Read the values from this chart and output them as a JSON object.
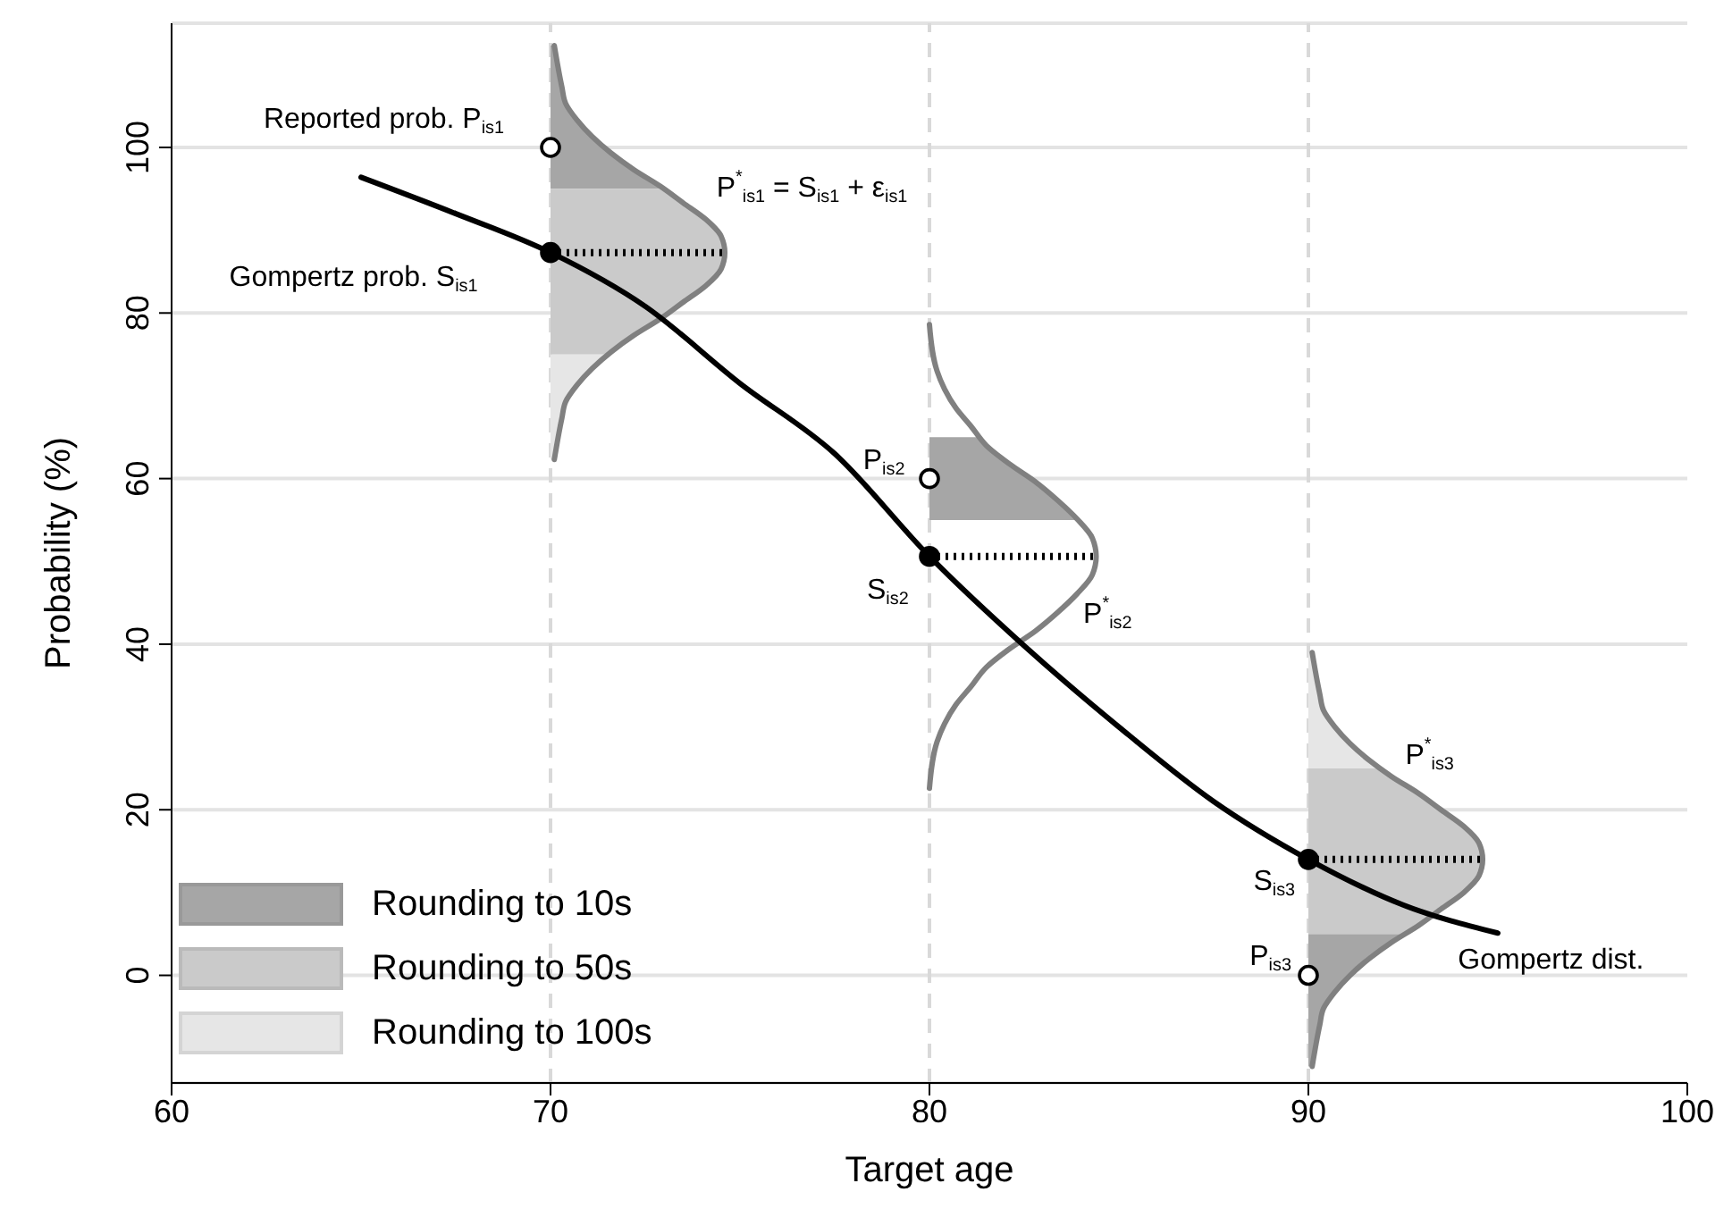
{
  "chart_data": {
    "type": "line",
    "xlabel": "Target age",
    "ylabel": "Probability (%)",
    "xlim": [
      60,
      100
    ],
    "xticks": [
      60,
      70,
      80,
      90,
      100
    ],
    "ylim": [
      -13,
      115
    ],
    "yticks": [
      0,
      20,
      40,
      60,
      80,
      100
    ],
    "grid": "y",
    "legend": "bottom left",
    "line_style": "solid",
    "ref_lines": [
      {
        "axis": "x",
        "value": 70,
        "color": "#d9d9d9",
        "line_style": "dashed"
      },
      {
        "axis": "x",
        "value": 80,
        "color": "#d9d9d9",
        "line_style": "dashed"
      },
      {
        "axis": "x",
        "value": 90,
        "color": "#d9d9d9",
        "line_style": "dashed"
      }
    ],
    "series": [
      {
        "name": "Rounding to 10s",
        "type": "area",
        "color": "#a6a6a6",
        "x": [
          70,
          73.0,
          72.2,
          71.6,
          71.1,
          70.7,
          70.4,
          70.3,
          70.1,
          70
        ],
        "values": [
          95,
          95,
          97.3,
          99.3,
          101.3,
          103.3,
          105.3,
          107.3,
          112.3,
          112.3
        ]
      },
      {
        "name": "Rounding to 50s",
        "type": "area",
        "color": "#cacaca",
        "x": [
          70,
          71.5,
          71.6,
          72.2,
          72.9,
          73.5,
          74.1,
          74.5,
          74.6,
          74.5,
          74.1,
          73.5,
          73.0,
          70
        ],
        "values": [
          75,
          75,
          75.3,
          77.3,
          79.3,
          81.3,
          83.3,
          85.3,
          87.3,
          89.3,
          91.3,
          93.3,
          95,
          95
        ]
      },
      {
        "name": "Rounding to 100s",
        "type": "area",
        "color": "#e6e6e6",
        "x": [
          70,
          70.1,
          70.3,
          70.4,
          70.7,
          71.1,
          71.5,
          70
        ],
        "values": [
          62.3,
          62.3,
          67.3,
          69.3,
          71.3,
          73.3,
          75,
          75
        ]
      },
      {
        "type": "area",
        "color": "#a6a6a6",
        "x": [
          80,
          83.9,
          83.4,
          82.8,
          82.1,
          81.5,
          81.3,
          80
        ],
        "values": [
          55,
          55,
          57.3,
          59.6,
          61.8,
          64.0,
          65,
          65
        ]
      },
      {
        "type": "area",
        "color": "#a6a6a6",
        "x": [
          90,
          90.1,
          90.3,
          90.4,
          90.7,
          91.1,
          91.6,
          92.2,
          92.6,
          90
        ],
        "values": [
          -11,
          -11,
          -6,
          -4,
          -2,
          0,
          2,
          4,
          5,
          5
        ]
      },
      {
        "type": "area",
        "color": "#cacaca",
        "x": [
          90,
          92.6,
          92.9,
          93.5,
          94.1,
          94.5,
          94.6,
          94.5,
          94.1,
          93.5,
          92.9,
          92.2,
          91.9,
          90
        ],
        "values": [
          5,
          5,
          6,
          8,
          10,
          12,
          14,
          16,
          18,
          20,
          22,
          24,
          25,
          25
        ]
      },
      {
        "type": "area",
        "color": "#e6e6e6",
        "x": [
          90,
          91.9,
          91.6,
          91.1,
          90.7,
          90.4,
          90.3,
          90.1,
          90
        ],
        "values": [
          25,
          25,
          26,
          28,
          30,
          32,
          34,
          39,
          39
        ]
      },
      {
        "color": "#808080",
        "x": [
          70.1,
          70.3,
          70.4,
          70.7,
          71.1,
          71.6,
          72.2,
          72.9,
          73.5,
          74.1,
          74.5,
          74.6,
          74.5,
          74.1,
          73.5,
          72.9,
          72.2,
          71.6,
          71.1,
          70.7,
          70.4,
          70.3,
          70.1
        ],
        "values": [
          62.3,
          67.3,
          69.3,
          71.3,
          73.3,
          75.3,
          77.3,
          79.3,
          81.3,
          83.3,
          85.3,
          87.3,
          89.3,
          91.3,
          93.3,
          95.3,
          97.3,
          99.3,
          101.3,
          103.3,
          105.3,
          107.3,
          112.3
        ]
      },
      {
        "color": "#808080",
        "x": [
          80.0,
          80.2,
          80.4,
          80.7,
          81.1,
          81.5,
          82.1,
          82.8,
          83.4,
          83.9,
          84.3,
          84.4,
          84.3,
          83.9,
          83.4,
          82.8,
          82.1,
          81.5,
          81.1,
          80.7,
          80.4,
          80.2,
          80.0
        ],
        "values": [
          22.6,
          28.2,
          30.4,
          32.7,
          34.9,
          37.2,
          39.4,
          41.6,
          43.9,
          46.1,
          48.4,
          50.6,
          52.8,
          55.1,
          57.3,
          59.6,
          61.8,
          64.0,
          66.3,
          68.5,
          70.8,
          73.0,
          78.6
        ]
      },
      {
        "color": "#808080",
        "x": [
          90.1,
          90.3,
          90.4,
          90.7,
          91.1,
          91.6,
          92.2,
          92.9,
          93.5,
          94.1,
          94.5,
          94.6,
          94.5,
          94.1,
          93.5,
          92.9,
          92.2,
          91.6,
          91.1,
          90.7,
          90.4,
          90.3,
          90.1
        ],
        "values": [
          -11,
          -6,
          -4,
          -2,
          0,
          2,
          4,
          6,
          8,
          10,
          12,
          14,
          16,
          18,
          20,
          22,
          24,
          26,
          28,
          30,
          32,
          34,
          39
        ]
      },
      {
        "color": "#000000",
        "x": [
          65,
          67.5,
          70,
          72.5,
          75,
          77.5,
          80,
          82.5,
          85,
          87.5,
          90,
          92.5,
          95
        ],
        "values": [
          96.4,
          92,
          87.3,
          80.8,
          71.5,
          63,
          50.6,
          39.8,
          30,
          21,
          14,
          8.5,
          5.1
        ]
      },
      {
        "color": "#000000",
        "line_style": "dotted",
        "x": [
          70,
          74.6
        ],
        "values": [
          87.3,
          87.3
        ]
      },
      {
        "color": "#000000",
        "line_style": "dotted",
        "x": [
          80,
          84.4
        ],
        "values": [
          50.6,
          50.6
        ]
      },
      {
        "color": "#000000",
        "line_style": "dotted",
        "x": [
          90,
          94.6
        ],
        "values": [
          14,
          14
        ]
      },
      {
        "type": "scatter",
        "marker": "circle",
        "color": "#000000",
        "x": [
          70,
          80,
          90
        ],
        "values": [
          87.3,
          50.6,
          14
        ]
      },
      {
        "type": "scatter",
        "marker": "circle",
        "color": "#ffffff",
        "x": [
          70,
          80,
          90
        ],
        "values": [
          100,
          60,
          0
        ]
      }
    ],
    "annotations": [
      "Reported prob. P$_{is1}$",
      "P$^{*}$$_{is1}$ = S$_{is1}$ + ε$_{is1}$",
      "Gompertz prob. S$_{is1}$",
      "P$_{is2}$",
      "S$_{is2}$",
      "P$^{*}$$_{is2}$",
      "P$^{*}$$_{is3}$",
      "S$_{is3}$",
      "P$_{is3}$",
      "Gompertz dist."
    ]
  }
}
